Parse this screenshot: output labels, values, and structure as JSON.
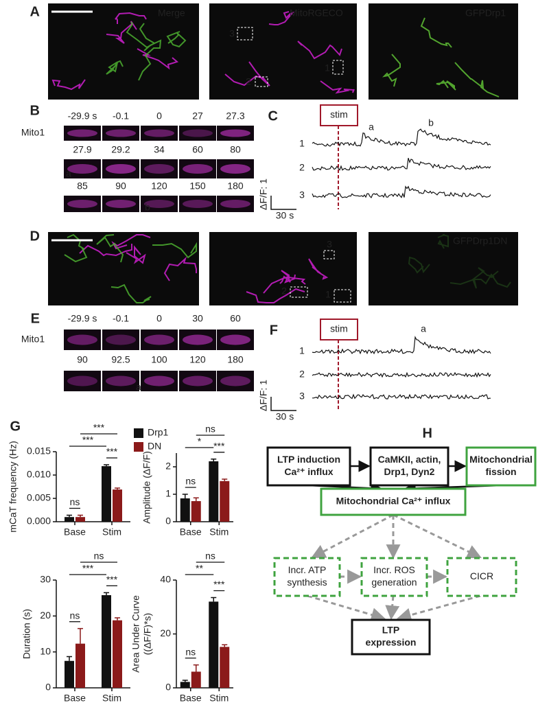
{
  "panels": {
    "A": {
      "label": "A",
      "images": [
        "Merge",
        "MitoRGECO",
        "GFPDrp1"
      ],
      "rois": [
        "3",
        "2",
        "1"
      ]
    },
    "B": {
      "label": "B",
      "row_label": "Mito1",
      "times": [
        "-29.9 s",
        "-0.1",
        "0",
        "27",
        "27.3",
        "27.9",
        "29.2",
        "34",
        "60",
        "80",
        "85",
        "90",
        "120",
        "150",
        "180"
      ],
      "markers": [
        "a",
        "b"
      ]
    },
    "C": {
      "label": "C",
      "stim": "stim",
      "traces": [
        "1",
        "2",
        "3"
      ],
      "peaks": [
        "a",
        "b"
      ],
      "scale_y": "ΔF/F: 1",
      "scale_x": "30 s"
    },
    "D": {
      "label": "D",
      "images": [
        "GFPDrp1DN"
      ],
      "rois": [
        "3",
        "2",
        "1"
      ]
    },
    "E": {
      "label": "E",
      "row_label": "Mito1",
      "times": [
        "-29.9 s",
        "-0.1",
        "0",
        "30",
        "60",
        "90",
        "92.5",
        "100",
        "120",
        "180"
      ],
      "markers": [
        "a"
      ]
    },
    "F": {
      "label": "F",
      "stim": "stim",
      "traces": [
        "1",
        "2",
        "3"
      ],
      "peaks": [
        "a"
      ],
      "scale_y": "ΔF/F: 1",
      "scale_x": "30 s"
    },
    "G": {
      "label": "G"
    },
    "H": {
      "label": "H",
      "nodes": [
        [
          "LTP induction",
          "Ca²⁺ influx"
        ],
        [
          "CaMKII, actin,",
          "Drp1, Dyn2"
        ],
        [
          "Mitochondrial",
          "fission"
        ],
        [
          "Mitochondrial Ca²⁺ influx"
        ],
        [
          "Incr. ATP",
          "synthesis"
        ],
        [
          "Incr. ROS",
          "generation"
        ],
        [
          "CICR"
        ],
        [
          "LTP",
          "expression"
        ]
      ]
    }
  },
  "chart_data": [
    {
      "type": "bar",
      "ylabel": [
        "mCaT frequency (Hz)"
      ],
      "categories": [
        "Base",
        "Stim"
      ],
      "ylim": [
        0,
        0.015
      ],
      "yticks": [
        {
          "value": 0,
          "label": "0.000"
        },
        {
          "value": 0.005,
          "label": "0.005"
        },
        {
          "value": 0.01,
          "label": "0.010"
        },
        {
          "value": 0.015,
          "label": "0.015"
        }
      ],
      "series": [
        {
          "name": "Drp1",
          "color": "#111111",
          "values": [
            0.001,
            0.0119
          ],
          "errors": [
            0.0004,
            0.0003
          ]
        },
        {
          "name": "DN",
          "color": "#8b1a1a",
          "values": [
            0.001,
            0.0069
          ],
          "errors": [
            0.0004,
            0.0003
          ]
        }
      ],
      "annotations": [
        "ns",
        "***",
        "***",
        "***"
      ]
    },
    {
      "type": "bar",
      "ylabel": [
        "Amplitude (ΔF/F)"
      ],
      "categories": [
        "Base",
        "Stim"
      ],
      "ylim": [
        0,
        2.5
      ],
      "yticks": [
        0,
        1,
        2
      ],
      "series": [
        {
          "name": "Drp1",
          "color": "#111111",
          "values": [
            0.85,
            2.2
          ],
          "errors": [
            0.15,
            0.08
          ]
        },
        {
          "name": "DN",
          "color": "#8b1a1a",
          "values": [
            0.75,
            1.48
          ],
          "errors": [
            0.12,
            0.07
          ]
        }
      ],
      "annotations": [
        "ns",
        "***",
        "*",
        "ns"
      ]
    },
    {
      "type": "bar",
      "ylabel": [
        "Duration (s)"
      ],
      "categories": [
        "Base",
        "Stim"
      ],
      "ylim": [
        0,
        30
      ],
      "yticks": [
        0,
        10,
        20,
        30
      ],
      "series": [
        {
          "name": "Drp1",
          "color": "#111111",
          "values": [
            7.5,
            25.8
          ],
          "errors": [
            1.2,
            0.7
          ]
        },
        {
          "name": "DN",
          "color": "#8b1a1a",
          "values": [
            12.3,
            18.8
          ],
          "errors": [
            4.2,
            0.7
          ]
        }
      ],
      "annotations": [
        "ns",
        "***",
        "***",
        "ns"
      ]
    },
    {
      "type": "bar",
      "ylabel": [
        "Area Under Curve",
        "((ΔF/F)*s)"
      ],
      "categories": [
        "Base",
        "Stim"
      ],
      "ylim": [
        0,
        40
      ],
      "yticks": [
        0,
        20,
        40
      ],
      "series": [
        {
          "name": "Drp1",
          "color": "#111111",
          "values": [
            2.2,
            32
          ],
          "errors": [
            0.6,
            1.5
          ]
        },
        {
          "name": "DN",
          "color": "#8b1a1a",
          "values": [
            6,
            15.2
          ],
          "errors": [
            2.5,
            0.8
          ]
        }
      ],
      "annotations": [
        "ns",
        "***",
        "**",
        "ns"
      ]
    }
  ]
}
